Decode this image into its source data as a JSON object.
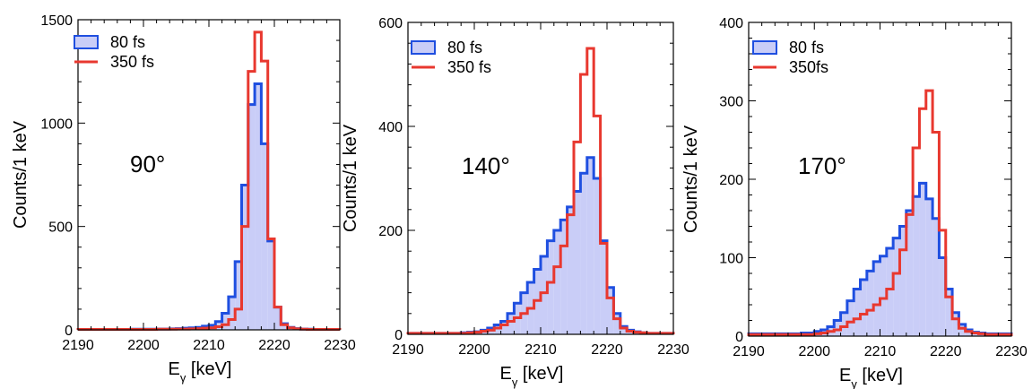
{
  "colors": {
    "fast_stroke": "#1f4fe0",
    "fast_fill": "#c9cdf7",
    "slow_stroke": "#e8382f",
    "axis": "#000000"
  },
  "chart_data": [
    {
      "type": "bar",
      "annotation": "90°",
      "xlabel_main": "E",
      "xlabel_sub": "γ",
      "xlabel_unit": " [keV]",
      "ylabel": "Counts/1 keV",
      "xlim": [
        2190,
        2230
      ],
      "ylim": [
        0,
        1500
      ],
      "xticks": [
        2190,
        2200,
        2210,
        2220,
        2230
      ],
      "yticks": [
        0,
        500,
        1000,
        1500
      ],
      "bin_width": 1,
      "legend": [
        "80 fs",
        "350 fs"
      ],
      "series": [
        {
          "name": "80 fs",
          "x": [
            2190,
            2191,
            2192,
            2193,
            2194,
            2195,
            2196,
            2197,
            2198,
            2199,
            2200,
            2201,
            2202,
            2203,
            2204,
            2205,
            2206,
            2207,
            2208,
            2209,
            2210,
            2211,
            2212,
            2213,
            2214,
            2215,
            2216,
            2217,
            2218,
            2219,
            2220,
            2221,
            2222,
            2223,
            2224,
            2225,
            2226,
            2227,
            2228,
            2229
          ],
          "values": [
            2,
            2,
            2,
            2,
            2,
            2,
            2,
            2,
            3,
            3,
            3,
            3,
            4,
            4,
            5,
            6,
            8,
            10,
            12,
            18,
            22,
            40,
            80,
            160,
            330,
            700,
            1090,
            1190,
            900,
            430,
            110,
            30,
            12,
            6,
            4,
            3,
            2,
            2,
            2,
            2
          ]
        },
        {
          "name": "350 fs",
          "x": [
            2190,
            2191,
            2192,
            2193,
            2194,
            2195,
            2196,
            2197,
            2198,
            2199,
            2200,
            2201,
            2202,
            2203,
            2204,
            2205,
            2206,
            2207,
            2208,
            2209,
            2210,
            2211,
            2212,
            2213,
            2214,
            2215,
            2216,
            2217,
            2218,
            2219,
            2220,
            2221,
            2222,
            2223,
            2224,
            2225,
            2226,
            2227,
            2228,
            2229
          ],
          "values": [
            2,
            2,
            2,
            2,
            2,
            2,
            2,
            2,
            2,
            2,
            2,
            2,
            3,
            3,
            3,
            4,
            4,
            5,
            6,
            8,
            10,
            15,
            25,
            50,
            100,
            500,
            1250,
            1440,
            1300,
            440,
            110,
            25,
            10,
            5,
            3,
            2,
            2,
            2,
            2,
            2
          ]
        }
      ]
    },
    {
      "type": "bar",
      "annotation": "140°",
      "xlabel_main": "E",
      "xlabel_sub": "γ",
      "xlabel_unit": " [keV]",
      "ylabel": "Counts/1 keV",
      "xlim": [
        2190,
        2230
      ],
      "ylim": [
        0,
        600
      ],
      "xticks": [
        2190,
        2200,
        2210,
        2220,
        2230
      ],
      "yticks": [
        0,
        200,
        400,
        600
      ],
      "bin_width": 1,
      "legend": [
        "80 fs",
        "350 fs"
      ],
      "series": [
        {
          "name": "80 fs",
          "x": [
            2190,
            2191,
            2192,
            2193,
            2194,
            2195,
            2196,
            2197,
            2198,
            2199,
            2200,
            2201,
            2202,
            2203,
            2204,
            2205,
            2206,
            2207,
            2208,
            2209,
            2210,
            2211,
            2212,
            2213,
            2214,
            2215,
            2216,
            2217,
            2218,
            2219,
            2220,
            2221,
            2222,
            2223,
            2224,
            2225,
            2226,
            2227,
            2228,
            2229
          ],
          "values": [
            2,
            2,
            2,
            2,
            2,
            2,
            2,
            2,
            3,
            4,
            5,
            8,
            12,
            18,
            25,
            40,
            60,
            80,
            100,
            125,
            150,
            180,
            200,
            220,
            245,
            275,
            310,
            340,
            300,
            180,
            90,
            40,
            15,
            8,
            5,
            3,
            2,
            2,
            2,
            2
          ]
        },
        {
          "name": "350 fs",
          "x": [
            2190,
            2191,
            2192,
            2193,
            2194,
            2195,
            2196,
            2197,
            2198,
            2199,
            2200,
            2201,
            2202,
            2203,
            2204,
            2205,
            2206,
            2207,
            2208,
            2209,
            2210,
            2211,
            2212,
            2213,
            2214,
            2215,
            2216,
            2217,
            2218,
            2219,
            2220,
            2221,
            2222,
            2223,
            2224,
            2225,
            2226,
            2227,
            2228,
            2229
          ],
          "values": [
            2,
            2,
            2,
            2,
            2,
            2,
            2,
            2,
            2,
            3,
            4,
            6,
            8,
            12,
            18,
            25,
            32,
            40,
            50,
            65,
            80,
            100,
            130,
            170,
            230,
            370,
            500,
            550,
            420,
            175,
            70,
            30,
            12,
            6,
            4,
            3,
            2,
            2,
            2,
            2
          ]
        }
      ]
    },
    {
      "type": "bar",
      "annotation": "170°",
      "xlabel_main": "E",
      "xlabel_sub": "γ",
      "xlabel_unit": " [keV]",
      "ylabel": "Counts/1 keV",
      "xlim": [
        2190,
        2230
      ],
      "ylim": [
        0,
        400
      ],
      "xticks": [
        2190,
        2200,
        2210,
        2220,
        2230
      ],
      "yticks": [
        0,
        100,
        200,
        300,
        400
      ],
      "bin_width": 1,
      "legend": [
        "80 fs",
        "350fs"
      ],
      "series": [
        {
          "name": "80 fs",
          "x": [
            2190,
            2191,
            2192,
            2193,
            2194,
            2195,
            2196,
            2197,
            2198,
            2199,
            2200,
            2201,
            2202,
            2203,
            2204,
            2205,
            2206,
            2207,
            2208,
            2209,
            2210,
            2211,
            2212,
            2213,
            2214,
            2215,
            2216,
            2217,
            2218,
            2219,
            2220,
            2221,
            2222,
            2223,
            2224,
            2225,
            2226,
            2227,
            2228,
            2229
          ],
          "values": [
            3,
            3,
            3,
            3,
            3,
            3,
            3,
            3,
            4,
            4,
            6,
            8,
            12,
            20,
            30,
            45,
            60,
            72,
            83,
            95,
            102,
            112,
            125,
            140,
            160,
            178,
            195,
            175,
            150,
            100,
            60,
            30,
            15,
            8,
            5,
            4,
            3,
            3,
            3,
            3
          ]
        },
        {
          "name": "350fs",
          "x": [
            2190,
            2191,
            2192,
            2193,
            2194,
            2195,
            2196,
            2197,
            2198,
            2199,
            2200,
            2201,
            2202,
            2203,
            2204,
            2205,
            2206,
            2207,
            2208,
            2209,
            2210,
            2211,
            2212,
            2213,
            2214,
            2215,
            2216,
            2217,
            2218,
            2219,
            2220,
            2221,
            2222,
            2223,
            2224,
            2225,
            2226,
            2227,
            2228,
            2229
          ],
          "values": [
            2,
            2,
            2,
            2,
            2,
            2,
            2,
            2,
            2,
            2,
            3,
            4,
            6,
            8,
            12,
            18,
            22,
            28,
            33,
            40,
            48,
            60,
            80,
            110,
            155,
            240,
            290,
            313,
            260,
            135,
            50,
            22,
            10,
            6,
            4,
            3,
            2,
            2,
            2,
            2
          ]
        }
      ]
    }
  ]
}
